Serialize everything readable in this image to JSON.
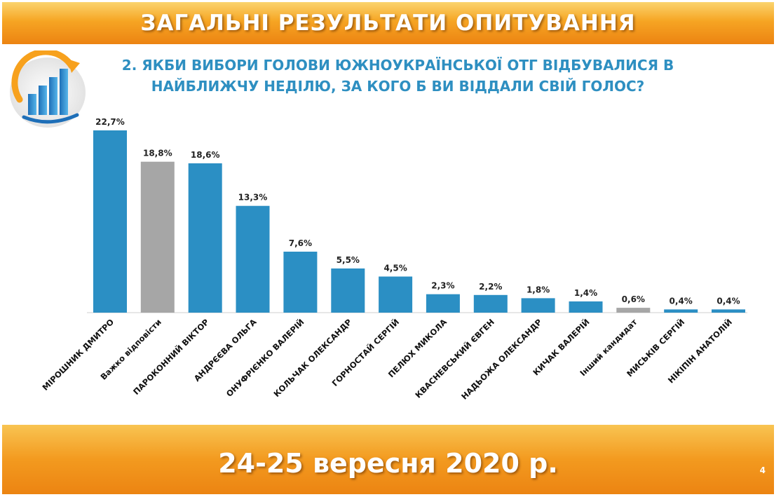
{
  "header": {
    "title": "ЗАГАЛЬНІ РЕЗУЛЬТАТИ ОПИТУВАННЯ"
  },
  "question": {
    "line1": "2. ЯКБИ ВИБОРИ ГОЛОВИ ЮЖНОУКРАЇНСЬКОЇ ОТГ ВІДБУВАЛИСЯ В",
    "line2": "НАЙБЛИЖЧУ НЕДІЛЮ, ЗА КОГО Б ВИ ВІДДАЛИ СВІЙ ГОЛОС?"
  },
  "footer": {
    "date": "24-25 вересня 2020 р.",
    "page_number": "4"
  },
  "logo": {
    "icon": "bar-chart-growth-logo-icon"
  },
  "colors": {
    "primary_bar": "#2b8fc4",
    "neutral_bar": "#a6a6a6",
    "banner": "#f39a1f",
    "question_text": "#2e8fc1"
  },
  "chart_data": {
    "type": "bar",
    "title": "",
    "xlabel": "",
    "ylabel": "",
    "ylim": [
      0,
      22.7
    ],
    "grid": false,
    "categories": [
      "МІРОШНИК ДМИТРО",
      "Важко відповісти",
      "ПАРОКОННИЙ ВІКТОР",
      "АНДРЄЄВА ОЛЬГА",
      "ОНУФРІЄНКО ВАЛЕРІЙ",
      "КОЛЬЧАК ОЛЕКСАНДР",
      "ГОРНОСТАЙ СЕРГІЙ",
      "ПЕЛЮХ МИКОЛА",
      "КВАСНЕВСЬКИЙ ЄВГЕН",
      "НАДЬОЖА ОЛЕКСАНДР",
      "КИЧАК ВАЛЕРІЙ",
      "Інший кандидат",
      "МИСЬКІВ СЕРГІЙ",
      "НІКІПІН АНАТОЛІЙ"
    ],
    "values": [
      22.7,
      18.8,
      18.6,
      13.3,
      7.6,
      5.5,
      4.5,
      2.3,
      2.2,
      1.8,
      1.4,
      0.6,
      0.4,
      0.4
    ],
    "value_labels": [
      "22,7%",
      "18,8%",
      "18,6%",
      "13,3%",
      "7,6%",
      "5,5%",
      "4,5%",
      "2,3%",
      "2,2%",
      "1,8%",
      "1,4%",
      "0,6%",
      "0,4%",
      "0,4%"
    ],
    "bar_colors": [
      "#2b8fc4",
      "#a6a6a6",
      "#2b8fc4",
      "#2b8fc4",
      "#2b8fc4",
      "#2b8fc4",
      "#2b8fc4",
      "#2b8fc4",
      "#2b8fc4",
      "#2b8fc4",
      "#2b8fc4",
      "#a6a6a6",
      "#2b8fc4",
      "#2b8fc4"
    ]
  }
}
